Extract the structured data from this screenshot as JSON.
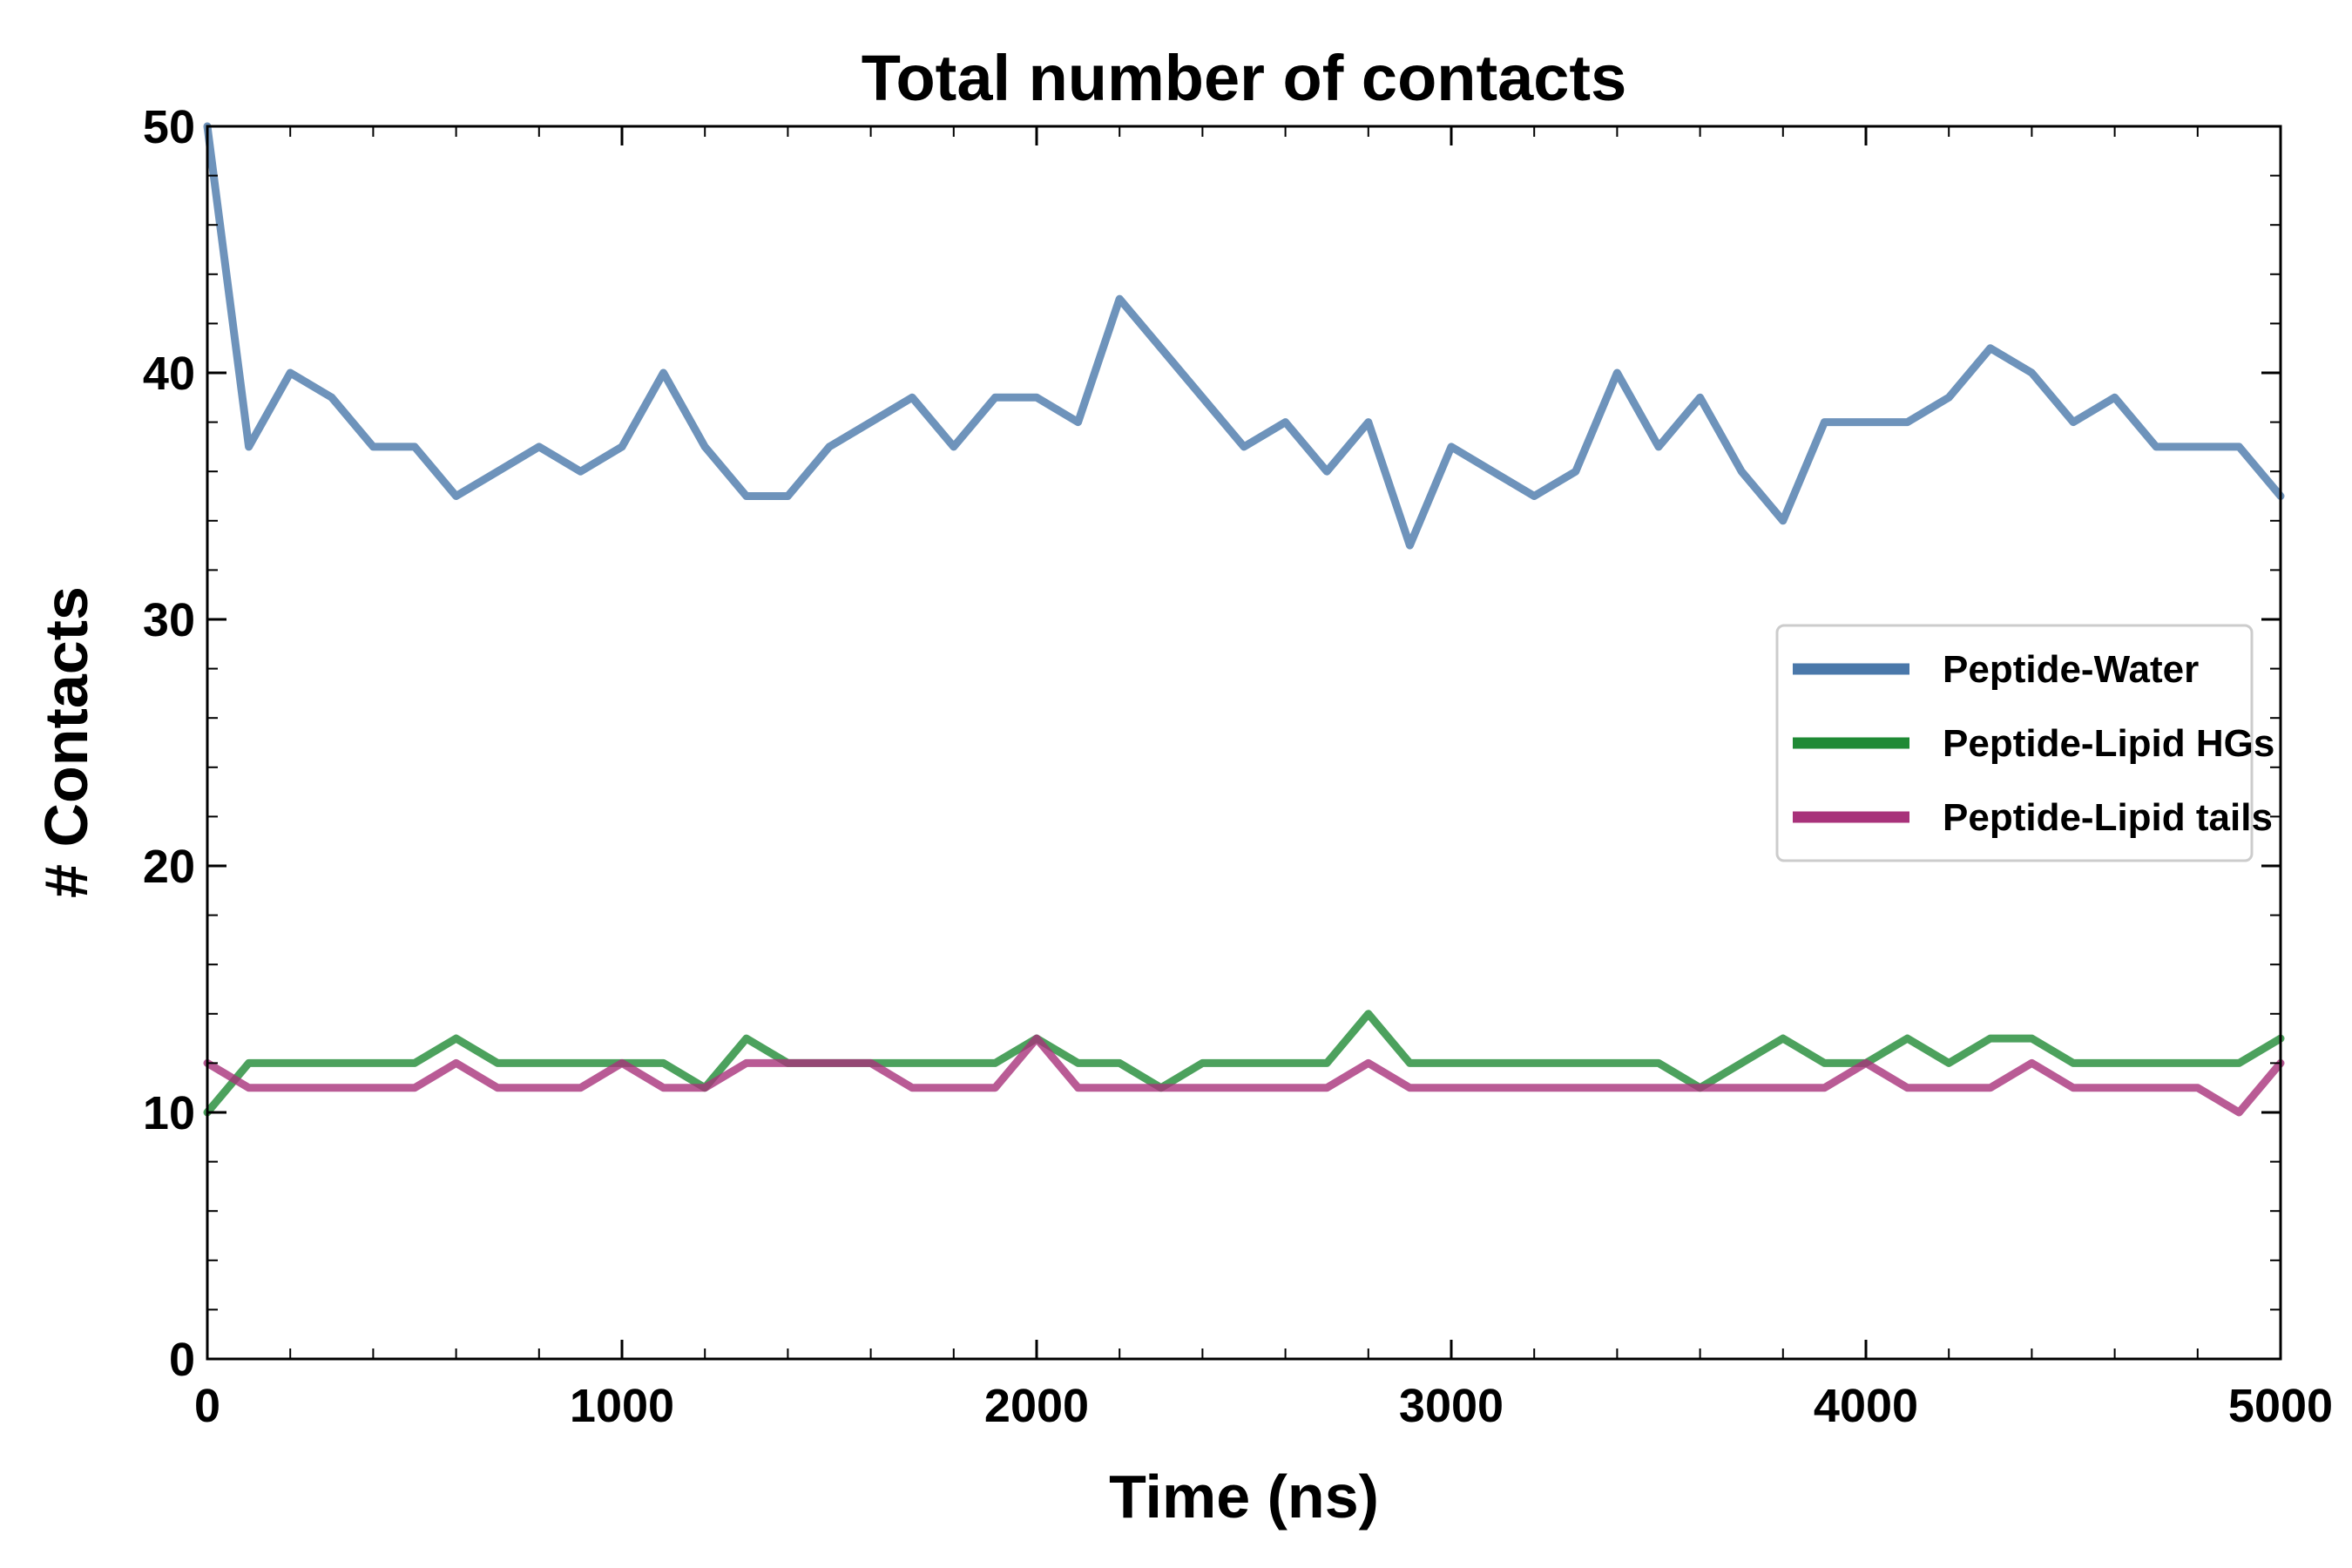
{
  "chart_data": {
    "type": "line",
    "title": "Total number of contacts",
    "xlabel": "Time (ns)",
    "ylabel": "# Contacts",
    "xlim": [
      0,
      5000
    ],
    "ylim": [
      0,
      50
    ],
    "x_ticks": [
      "0",
      "1000",
      "2000",
      "3000",
      "4000",
      "5000"
    ],
    "y_ticks": [
      "0",
      "10",
      "20",
      "30",
      "40",
      "50"
    ],
    "grid": false,
    "legend_position": "center-right",
    "x": [
      0,
      100,
      200,
      300,
      400,
      500,
      600,
      700,
      800,
      900,
      1000,
      1100,
      1200,
      1300,
      1400,
      1500,
      1600,
      1700,
      1800,
      1900,
      2000,
      2100,
      2200,
      2300,
      2400,
      2500,
      2600,
      2700,
      2800,
      2900,
      3000,
      3100,
      3200,
      3300,
      3400,
      3500,
      3600,
      3700,
      3800,
      3900,
      4000,
      4100,
      4200,
      4300,
      4400,
      4500,
      4600,
      4700,
      4800,
      4900,
      5000
    ],
    "series": [
      {
        "name": "Peptide-Water",
        "color": "#4a78aa",
        "values": [
          50,
          37,
          40,
          39,
          37,
          37,
          35,
          36,
          37,
          36,
          37,
          40,
          37,
          35,
          35,
          37,
          38,
          39,
          37,
          39,
          39,
          38,
          43,
          41,
          39,
          37,
          38,
          36,
          38,
          33,
          37,
          36,
          35,
          36,
          40,
          37,
          39,
          36,
          34,
          38,
          38,
          38,
          39,
          41,
          40,
          38,
          39,
          37,
          37,
          37,
          35
        ]
      },
      {
        "name": "Peptide-Lipid HGs",
        "color": "#1f8a35",
        "values": [
          10,
          12,
          12,
          12,
          12,
          12,
          13,
          12,
          12,
          12,
          12,
          12,
          11,
          13,
          12,
          12,
          12,
          12,
          12,
          12,
          13,
          12,
          12,
          11,
          12,
          12,
          12,
          12,
          14,
          12,
          12,
          12,
          12,
          12,
          12,
          12,
          11,
          12,
          13,
          12,
          12,
          13,
          12,
          13,
          13,
          12,
          12,
          12,
          12,
          12,
          13
        ]
      },
      {
        "name": "Peptide-Lipid tails",
        "color": "#a8327a",
        "values": [
          12,
          11,
          11,
          11,
          11,
          11,
          12,
          11,
          11,
          11,
          12,
          11,
          11,
          12,
          12,
          12,
          12,
          11,
          11,
          11,
          13,
          11,
          11,
          11,
          11,
          11,
          11,
          11,
          12,
          11,
          11,
          11,
          11,
          11,
          11,
          11,
          11,
          11,
          11,
          11,
          12,
          11,
          11,
          11,
          12,
          11,
          11,
          11,
          11,
          10,
          12
        ]
      }
    ]
  }
}
